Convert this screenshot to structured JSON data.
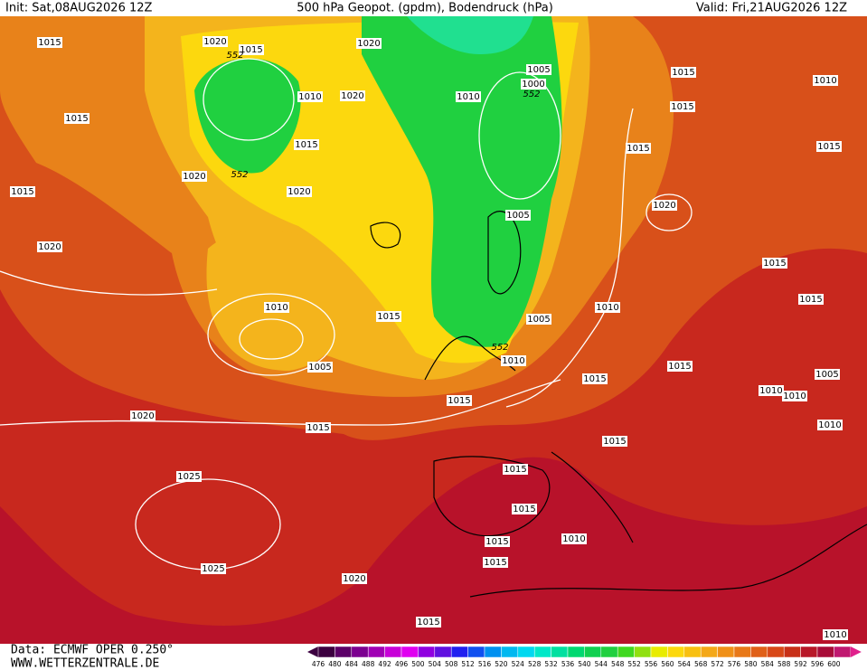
{
  "header": {
    "init": "Init: Sat,08AUG2026 12Z",
    "title": "500 hPa Geopot. (gpdm), Bodendruck (hPa)",
    "valid": "Valid: Fri,21AUG2026 12Z"
  },
  "footer": {
    "data": "Data: ECMWF OPER 0.250°",
    "site": "WWW.WETTERZENTRALE.DE"
  },
  "map": {
    "pressure_labels": [
      "1015",
      "1020",
      "1015",
      "552",
      "1010",
      "1020",
      "1020",
      "1015",
      "1015",
      "552",
      "1020",
      "1020",
      "1015",
      "1020",
      "1010",
      "1005",
      "1000",
      "552",
      "1015",
      "1010",
      "1015",
      "1015",
      "1015",
      "1020",
      "1005",
      "1015",
      "1015",
      "1010",
      "1015",
      "1010",
      "1005",
      "552",
      "1010",
      "1005",
      "1015",
      "1015",
      "1005",
      "1010",
      "1010",
      "1015",
      "1020",
      "1015",
      "1010",
      "1015",
      "1015",
      "1025",
      "1015",
      "1015",
      "1010",
      "1015",
      "1025",
      "1020",
      "1015",
      "1010"
    ]
  },
  "legend": {
    "levels": [
      476,
      480,
      484,
      488,
      492,
      496,
      500,
      504,
      508,
      512,
      516,
      520,
      524,
      528,
      532,
      536,
      540,
      544,
      548,
      552,
      556,
      560,
      564,
      568,
      572,
      576,
      580,
      584,
      588,
      592,
      596,
      600
    ]
  }
}
